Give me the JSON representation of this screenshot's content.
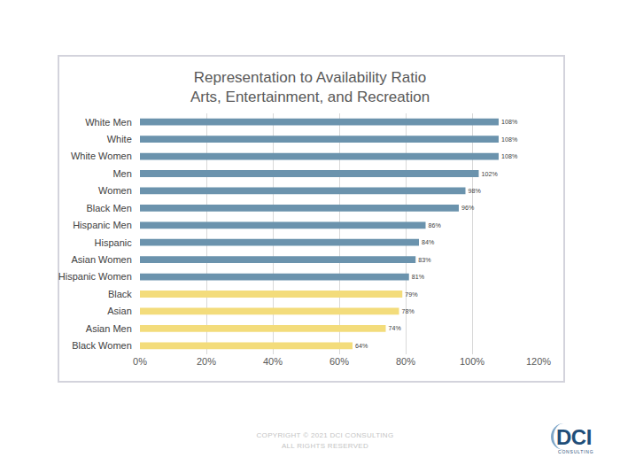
{
  "chart_data": {
    "type": "bar",
    "title": "Representation to Availability Ratio",
    "subtitle": "Arts, Entertainment, and Recreation",
    "orientation": "horizontal",
    "categories": [
      "White Men",
      "White",
      "White Women",
      "Men",
      "Women",
      "Black Men",
      "Hispanic Men",
      "Hispanic",
      "Asian Women",
      "Hispanic Women",
      "Black",
      "Asian",
      "Asian Men",
      "Black Women"
    ],
    "values": [
      108,
      108,
      108,
      102,
      98,
      96,
      86,
      84,
      83,
      81,
      79,
      78,
      74,
      64
    ],
    "value_labels": [
      "108%",
      "108%",
      "108%",
      "102%",
      "98%",
      "96%",
      "86%",
      "84%",
      "83%",
      "81%",
      "79%",
      "78%",
      "74%",
      "64%"
    ],
    "colors": [
      "#6b93ad",
      "#6b93ad",
      "#6b93ad",
      "#6b93ad",
      "#6b93ad",
      "#6b93ad",
      "#6b93ad",
      "#6b93ad",
      "#6b93ad",
      "#6b93ad",
      "#f3dc7b",
      "#f3dc7b",
      "#f3dc7b",
      "#f3dc7b"
    ],
    "data_labels": true,
    "xlim": [
      0,
      120
    ],
    "xticks": [
      {
        "value": 0,
        "label": "0%"
      },
      {
        "value": 20,
        "label": "20%"
      },
      {
        "value": 40,
        "label": "40%"
      },
      {
        "value": 60,
        "label": "60%"
      },
      {
        "value": 80,
        "label": "80%"
      },
      {
        "value": 100,
        "label": "100%"
      },
      {
        "value": 120,
        "label": "120%"
      }
    ],
    "grid": true
  },
  "footer": {
    "lines": [
      "COPYRIGHT © 2021 DCI CONSULTING",
      "ALL RIGHTS RESERVED"
    ]
  },
  "logo": {
    "name": "DCI",
    "tagline": "CONSULTING"
  }
}
